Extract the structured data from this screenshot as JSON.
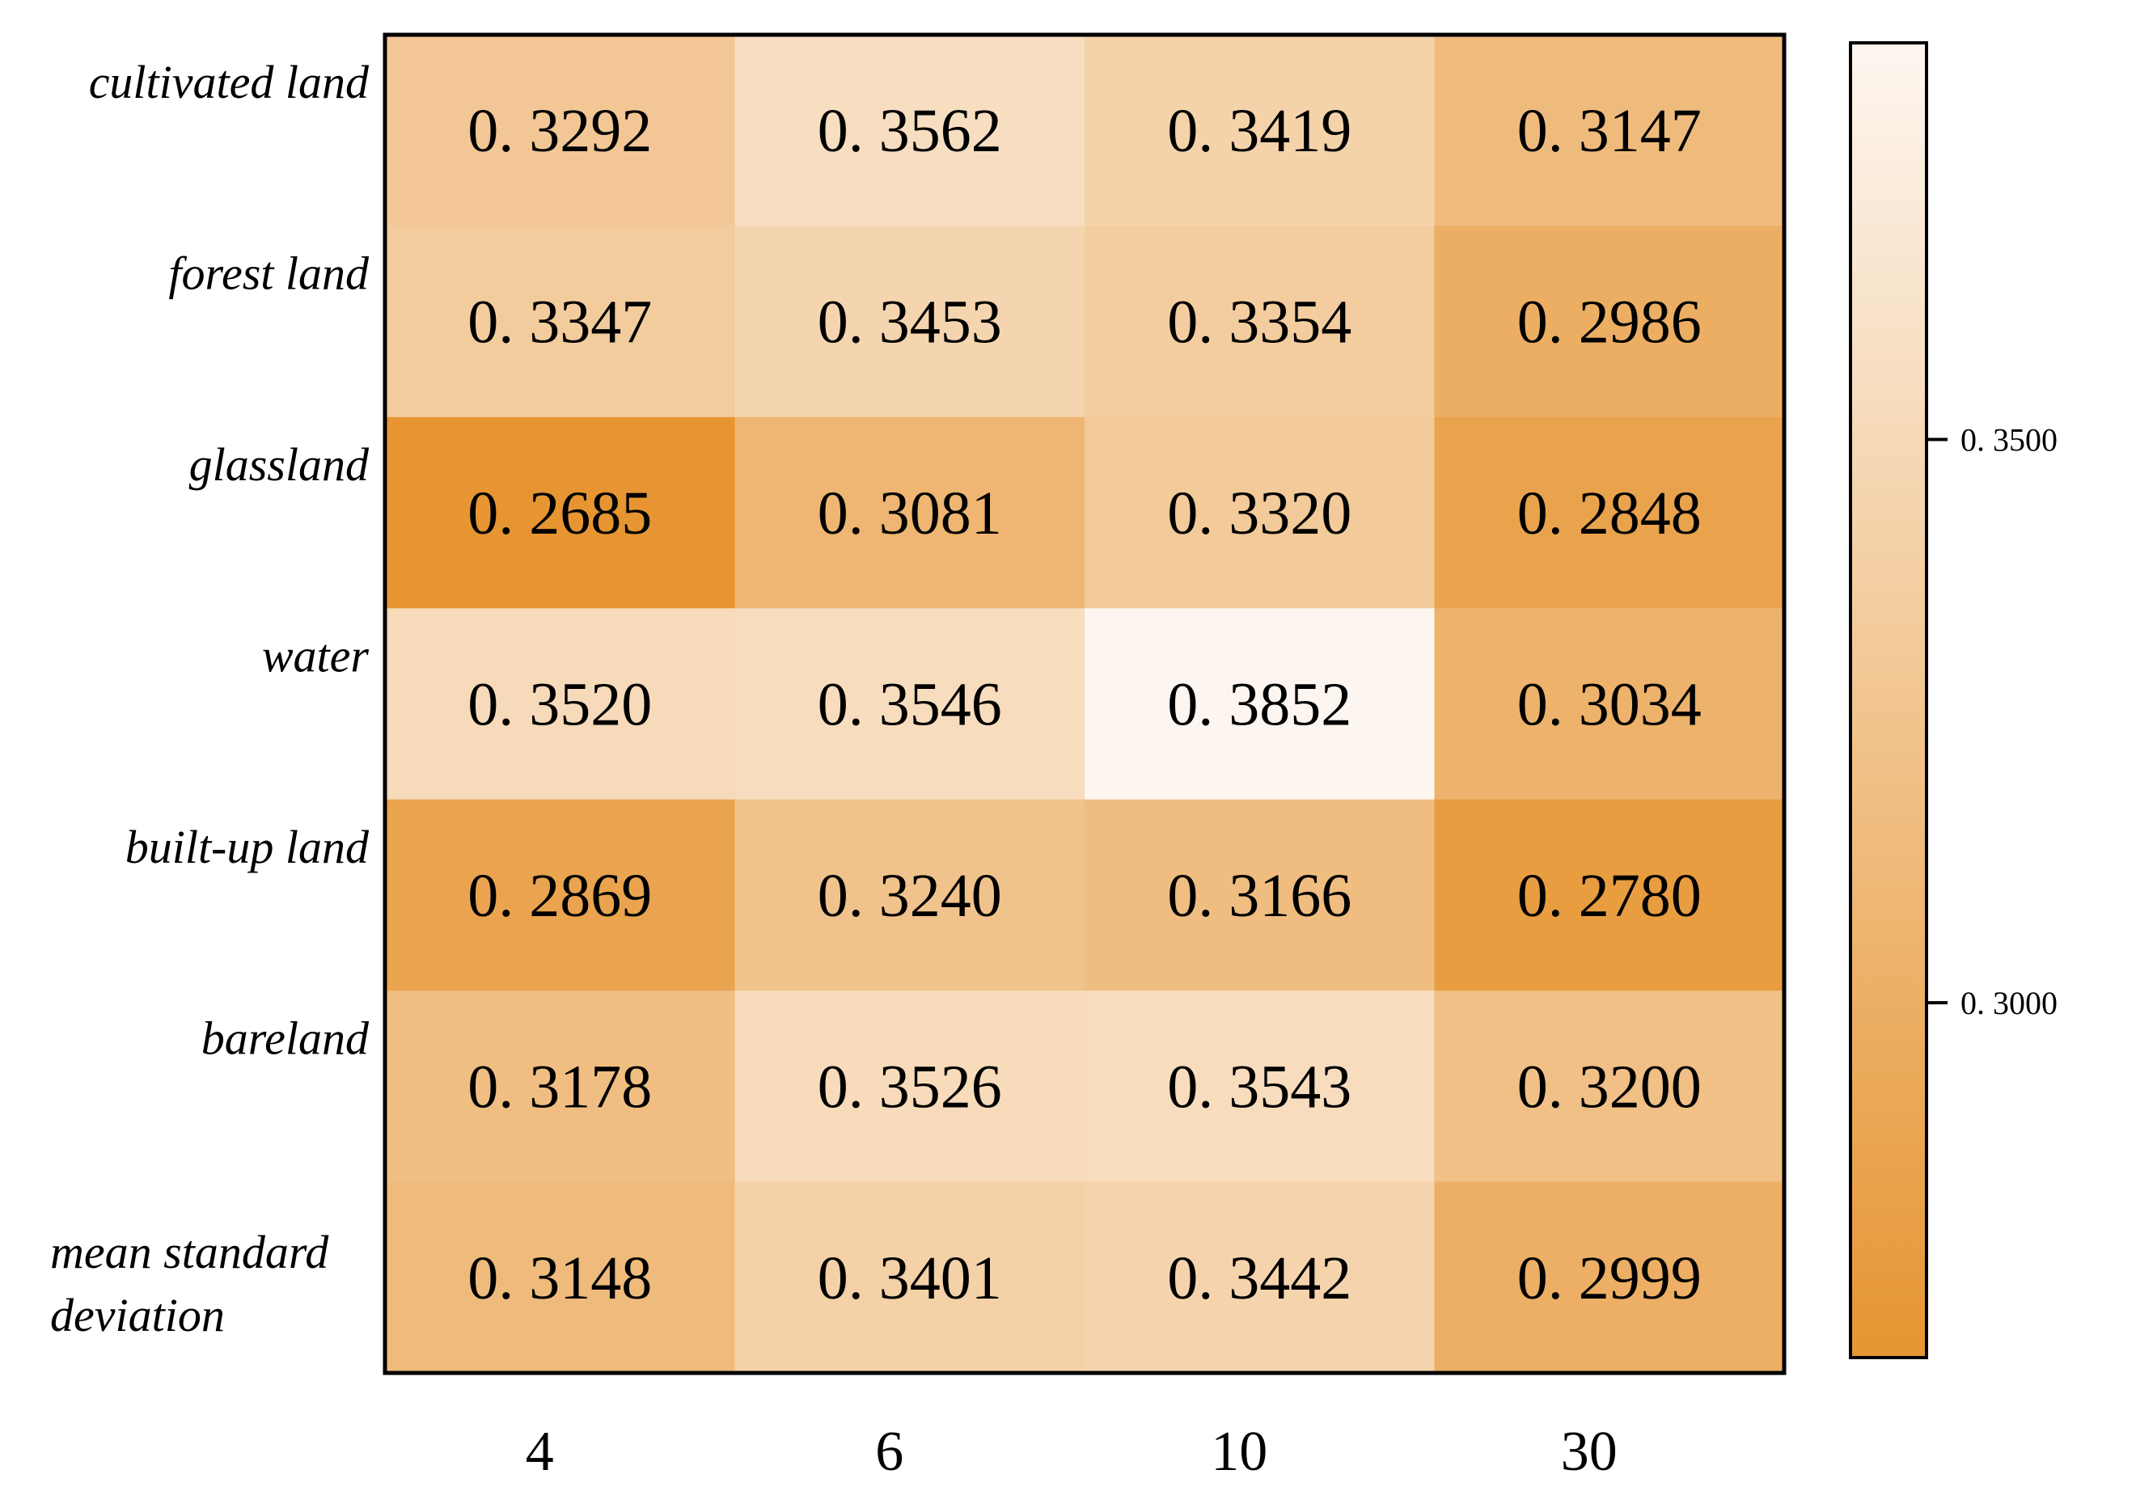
{
  "chart_data": {
    "type": "heatmap",
    "title": "",
    "xlabel": "",
    "ylabel": "",
    "rows": [
      "cultivated land",
      "forest land",
      "glassland",
      "water",
      "built-up land",
      "bareland",
      "mean standard deviation"
    ],
    "columns": [
      "4",
      "6",
      "10",
      "30"
    ],
    "values": [
      [
        0.3292,
        0.3562,
        0.3419,
        0.3147
      ],
      [
        0.3347,
        0.3453,
        0.3354,
        0.2986
      ],
      [
        0.2685,
        0.3081,
        0.332,
        0.2848
      ],
      [
        0.352,
        0.3546,
        0.3852,
        0.3034
      ],
      [
        0.2869,
        0.324,
        0.3166,
        0.278
      ],
      [
        0.3178,
        0.3526,
        0.3543,
        0.32
      ],
      [
        0.3148,
        0.3401,
        0.3442,
        0.2999
      ]
    ],
    "cell_labels": [
      [
        "0. 3292",
        "0. 3562",
        "0. 3419",
        "0. 3147"
      ],
      [
        "0. 3347",
        "0. 3453",
        "0. 3354",
        "0. 2986"
      ],
      [
        "0. 2685",
        "0. 3081",
        "0. 3320",
        "0. 2848"
      ],
      [
        "0. 3520",
        "0. 3546",
        "0. 3852",
        "0. 3034"
      ],
      [
        "0. 2869",
        "0. 3240",
        "0. 3166",
        "0. 2780"
      ],
      [
        "0. 3178",
        "0. 3526",
        "0. 3543",
        "0. 3200"
      ],
      [
        "0. 3148",
        "0. 3401",
        "0. 3442",
        "0. 2999"
      ]
    ],
    "colorbar": {
      "range": [
        0.2685,
        0.3852
      ],
      "ticks": [
        0.35,
        0.3
      ],
      "tick_labels": [
        "0. 3500",
        "0. 3000"
      ],
      "color_low": "#e69532",
      "color_high": "#fdf6f0"
    },
    "grid": false,
    "legend": "colorbar-right"
  }
}
